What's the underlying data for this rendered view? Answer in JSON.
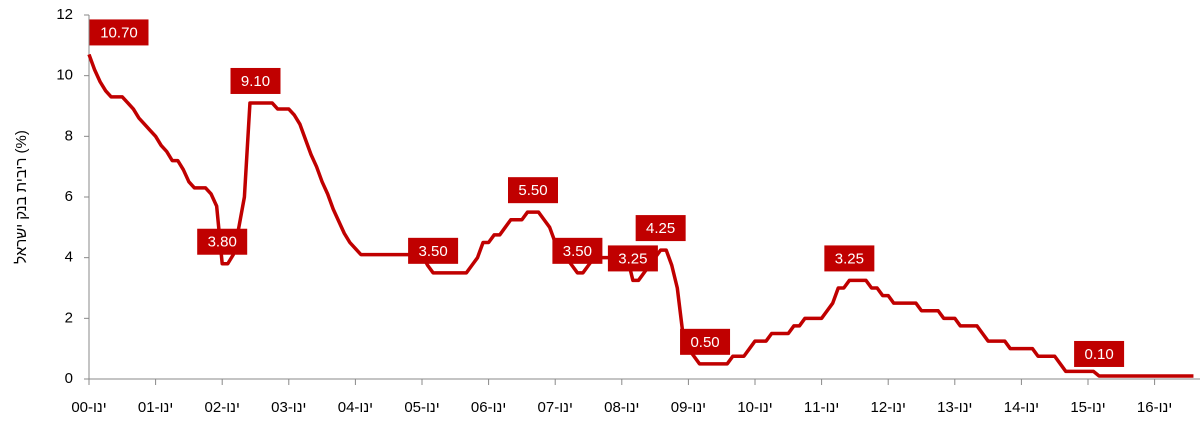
{
  "chart_data": {
    "type": "line",
    "y_label": "ריבית בנק ישראל (%)",
    "color": "#c00000",
    "ylim": [
      0,
      12
    ],
    "yticks": [
      0,
      2,
      4,
      6,
      8,
      10,
      12
    ],
    "categories": [
      "ינו-00",
      null,
      null,
      null,
      null,
      null,
      null,
      null,
      null,
      null,
      null,
      null,
      "ינו-01",
      null,
      null,
      null,
      null,
      null,
      null,
      null,
      null,
      null,
      null,
      null,
      "ינו-02",
      null,
      null,
      null,
      null,
      null,
      null,
      null,
      null,
      null,
      null,
      null,
      "ינו-03",
      null,
      null,
      null,
      null,
      null,
      null,
      null,
      null,
      null,
      null,
      null,
      "ינו-04",
      null,
      null,
      null,
      null,
      null,
      null,
      null,
      null,
      null,
      null,
      null,
      "ינו-05",
      null,
      null,
      null,
      null,
      null,
      null,
      null,
      null,
      null,
      null,
      null,
      "ינו-06",
      null,
      null,
      null,
      null,
      null,
      null,
      null,
      null,
      null,
      null,
      null,
      "ינו-07",
      null,
      null,
      null,
      null,
      null,
      null,
      null,
      null,
      null,
      null,
      null,
      "ינו-08",
      null,
      null,
      null,
      null,
      null,
      null,
      null,
      null,
      null,
      null,
      null,
      "ינו-09",
      null,
      null,
      null,
      null,
      null,
      null,
      null,
      null,
      null,
      null,
      null,
      "ינו-10",
      null,
      null,
      null,
      null,
      null,
      null,
      null,
      null,
      null,
      null,
      null,
      "ינו-11",
      null,
      null,
      null,
      null,
      null,
      null,
      null,
      null,
      null,
      null,
      null,
      "ינו-12",
      null,
      null,
      null,
      null,
      null,
      null,
      null,
      null,
      null,
      null,
      null,
      "ינו-13",
      null,
      null,
      null,
      null,
      null,
      null,
      null,
      null,
      null,
      null,
      null,
      "ינו-14",
      null,
      null,
      null,
      null,
      null,
      null,
      null,
      null,
      null,
      null,
      null,
      "ינו-15",
      null,
      null,
      null,
      null,
      null,
      null,
      null,
      null,
      null,
      null,
      null,
      "ינו-16",
      null,
      null,
      null,
      null,
      null,
      null,
      null
    ],
    "values": [
      10.7,
      10.2,
      9.8,
      9.5,
      9.3,
      9.3,
      9.3,
      9.1,
      8.9,
      8.6,
      8.4,
      8.2,
      8.0,
      7.7,
      7.5,
      7.2,
      7.2,
      6.9,
      6.5,
      6.3,
      6.3,
      6.3,
      6.1,
      5.7,
      3.8,
      3.8,
      4.1,
      5.0,
      6.0,
      9.1,
      9.1,
      9.1,
      9.1,
      9.1,
      8.9,
      8.9,
      8.9,
      8.7,
      8.4,
      7.9,
      7.4,
      7.0,
      6.5,
      6.1,
      5.6,
      5.2,
      4.8,
      4.5,
      4.3,
      4.1,
      4.1,
      4.1,
      4.1,
      4.1,
      4.1,
      4.1,
      4.1,
      4.1,
      4.1,
      4.1,
      4.1,
      3.75,
      3.5,
      3.5,
      3.5,
      3.5,
      3.5,
      3.5,
      3.5,
      3.75,
      4.0,
      4.5,
      4.5,
      4.75,
      4.75,
      5.0,
      5.25,
      5.25,
      5.25,
      5.5,
      5.5,
      5.5,
      5.25,
      5.0,
      4.5,
      4.25,
      4.0,
      3.75,
      3.5,
      3.5,
      3.75,
      4.0,
      4.0,
      4.0,
      4.0,
      4.0,
      4.0,
      4.0,
      3.25,
      3.25,
      3.5,
      3.75,
      4.0,
      4.25,
      4.25,
      3.75,
      3.0,
      1.5,
      1.0,
      0.75,
      0.5,
      0.5,
      0.5,
      0.5,
      0.5,
      0.5,
      0.75,
      0.75,
      0.75,
      1.0,
      1.25,
      1.25,
      1.25,
      1.5,
      1.5,
      1.5,
      1.5,
      1.75,
      1.75,
      2.0,
      2.0,
      2.0,
      2.0,
      2.25,
      2.5,
      3.0,
      3.0,
      3.25,
      3.25,
      3.25,
      3.25,
      3.0,
      3.0,
      2.75,
      2.75,
      2.5,
      2.5,
      2.5,
      2.5,
      2.5,
      2.25,
      2.25,
      2.25,
      2.25,
      2.0,
      2.0,
      2.0,
      1.75,
      1.75,
      1.75,
      1.75,
      1.5,
      1.25,
      1.25,
      1.25,
      1.25,
      1.0,
      1.0,
      1.0,
      1.0,
      1.0,
      0.75,
      0.75,
      0.75,
      0.75,
      0.5,
      0.25,
      0.25,
      0.25,
      0.25,
      0.25,
      0.25,
      0.1,
      0.1,
      0.1,
      0.1,
      0.1,
      0.1,
      0.1,
      0.1,
      0.1,
      0.1,
      0.1,
      0.1,
      0.1,
      0.1,
      0.1,
      0.1,
      0.1,
      0.1
    ],
    "value_labels": [
      "10.70",
      null,
      null,
      null,
      null,
      null,
      null,
      null,
      null,
      null,
      null,
      null,
      null,
      null,
      null,
      null,
      null,
      null,
      null,
      null,
      null,
      null,
      null,
      null,
      "3.80",
      null,
      null,
      null,
      null,
      null,
      "9.10",
      null,
      null,
      null,
      null,
      null,
      null,
      null,
      null,
      null,
      null,
      null,
      null,
      null,
      null,
      null,
      null,
      null,
      null,
      null,
      null,
      null,
      null,
      null,
      null,
      null,
      null,
      null,
      null,
      null,
      null,
      null,
      "3.50",
      null,
      null,
      null,
      null,
      null,
      null,
      null,
      null,
      null,
      null,
      null,
      null,
      null,
      null,
      null,
      null,
      null,
      "5.50",
      null,
      null,
      null,
      null,
      null,
      null,
      null,
      "3.50",
      null,
      null,
      null,
      null,
      null,
      null,
      null,
      null,
      null,
      "3.25",
      null,
      null,
      null,
      null,
      "4.25",
      null,
      null,
      null,
      null,
      null,
      null,
      null,
      "0.50",
      null,
      null,
      null,
      null,
      null,
      null,
      null,
      null,
      null,
      null,
      null,
      null,
      null,
      null,
      null,
      null,
      null,
      null,
      null,
      null,
      null,
      null,
      null,
      null,
      null,
      "3.25",
      null,
      null,
      null,
      null,
      null,
      null,
      null,
      null,
      null,
      null,
      null,
      null,
      null,
      null,
      null,
      null,
      null,
      null,
      null,
      null,
      null,
      null,
      null,
      null,
      null,
      null,
      null,
      null,
      null,
      null,
      null,
      null,
      null,
      null,
      null,
      null,
      null,
      null,
      null,
      null,
      null,
      null,
      null,
      null,
      "0.10",
      null,
      null,
      null,
      null,
      null,
      null,
      null,
      null,
      null,
      null,
      null,
      null,
      null,
      null,
      null,
      null,
      null
    ]
  }
}
